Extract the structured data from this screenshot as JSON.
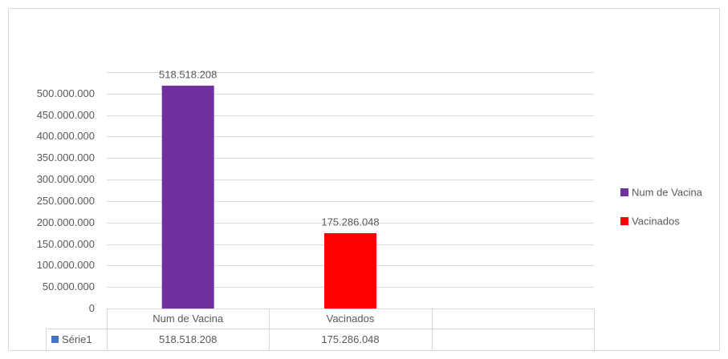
{
  "chart_data": {
    "type": "bar",
    "categories": [
      "Num de Vacina",
      "Vacinados",
      null
    ],
    "series": [
      {
        "name": "Série1",
        "color": "#4472c4",
        "values": [
          518518208,
          175286048,
          null
        ],
        "value_labels": [
          "518.518.208",
          "175.286.048",
          null
        ],
        "colors": [
          "#7030a0",
          "#ff0000",
          null
        ]
      }
    ],
    "ylim": [
      0,
      550000000
    ],
    "yticks": [
      0,
      {
        "value": 50000000,
        "label": "50.000.000"
      },
      {
        "value": 100000000,
        "label": "100.000.000"
      },
      {
        "value": 150000000,
        "label": "150.000.000"
      },
      {
        "value": 200000000,
        "label": "200.000.000"
      },
      {
        "value": 250000000,
        "label": "250.000.000"
      },
      {
        "value": 300000000,
        "label": "300.000.000"
      },
      {
        "value": 350000000,
        "label": "350.000.000"
      },
      {
        "value": 400000000,
        "label": "400.000.000"
      },
      {
        "value": 450000000,
        "label": "450.000.000"
      },
      {
        "value": 500000000,
        "label": "500.000.000"
      }
    ],
    "grid": true,
    "legend": "right",
    "data_table": true
  }
}
